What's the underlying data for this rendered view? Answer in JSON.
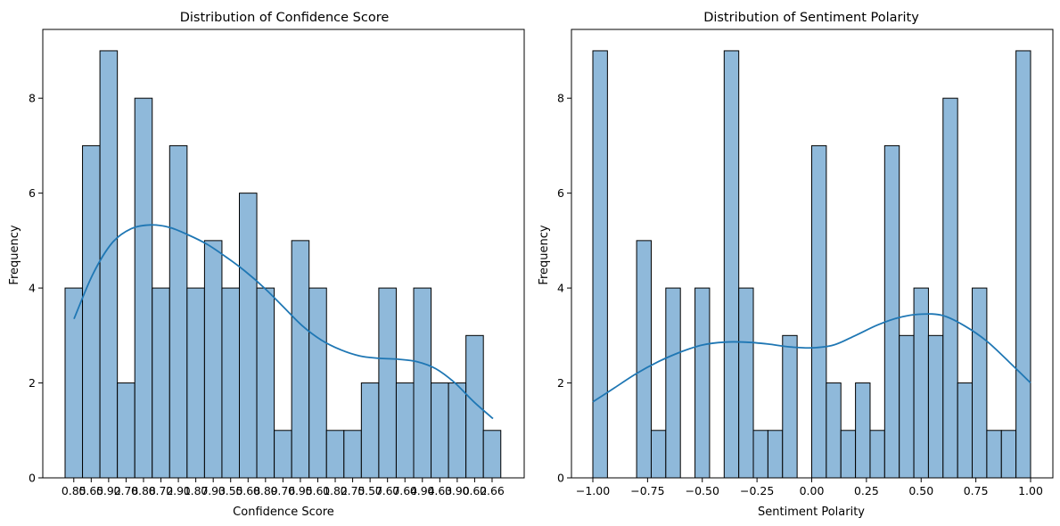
{
  "colors": {
    "bar_fill": "#8fb9da",
    "kde": "#1f77b4"
  },
  "chart_data": [
    {
      "type": "bar",
      "subtype": "histogram-with-kde",
      "title": "Distribution of Confidence Score",
      "xlabel": "Confidence Score",
      "ylabel": "Frequency",
      "ylim": [
        0,
        9.45
      ],
      "yticks": [
        0,
        2,
        4,
        6,
        8
      ],
      "categories": [
        "0.85",
        "0.65",
        "0.92",
        "0.78",
        "0.88",
        "0.72",
        "0.91",
        "0.87",
        "0.93",
        "0.55",
        "0.68",
        "0.89",
        "0.76",
        "0.95",
        "0.61",
        "0.82",
        "0.75",
        "0.57",
        "0.67",
        "0.64",
        "0.94",
        "0.63",
        "0.90",
        "0.62",
        "0.66"
      ],
      "values": [
        4,
        7,
        9,
        2,
        8,
        4,
        7,
        4,
        5,
        4,
        6,
        4,
        1,
        5,
        4,
        1,
        1,
        2,
        4,
        2,
        4,
        2,
        2,
        3,
        1
      ],
      "kde": [
        3.35,
        4.3,
        4.95,
        5.25,
        5.33,
        5.28,
        5.12,
        4.92,
        4.65,
        4.35,
        4.0,
        3.6,
        3.2,
        2.9,
        2.7,
        2.57,
        2.52,
        2.5,
        2.45,
        2.3,
        2.0,
        1.6,
        1.25
      ]
    },
    {
      "type": "bar",
      "subtype": "histogram-with-kde",
      "title": "Distribution of Sentiment Polarity",
      "xlabel": "Sentiment Polarity",
      "ylabel": "Frequency",
      "xlim": [
        -1.0,
        1.0
      ],
      "ylim": [
        0,
        9.45
      ],
      "xticks": [
        "−1.00",
        "−0.75",
        "−0.50",
        "−0.25",
        "0.00",
        "0.25",
        "0.50",
        "0.75",
        "1.00"
      ],
      "yticks": [
        0,
        2,
        4,
        6,
        8
      ],
      "bin_edges": [
        -1.0,
        -0.9333,
        -0.8667,
        -0.8,
        -0.7333,
        -0.6667,
        -0.6,
        -0.5333,
        -0.4667,
        -0.4,
        -0.3333,
        -0.2667,
        -0.2,
        -0.1333,
        -0.0667,
        0.0,
        0.0667,
        0.1333,
        0.2,
        0.2667,
        0.3333,
        0.4,
        0.4667,
        0.5333,
        0.6,
        0.6667,
        0.7333,
        0.8,
        0.8667,
        0.9333,
        1.0
      ],
      "values": [
        9,
        0,
        0,
        5,
        1,
        4,
        0,
        4,
        0,
        9,
        4,
        1,
        1,
        3,
        0,
        7,
        2,
        1,
        2,
        1,
        7,
        3,
        4,
        3,
        8,
        2,
        4,
        1,
        1,
        9
      ],
      "kde_x": [
        -1.0,
        -0.9,
        -0.8,
        -0.7,
        -0.6,
        -0.5,
        -0.4,
        -0.3,
        -0.2,
        -0.1,
        0.0,
        0.1,
        0.2,
        0.3,
        0.4,
        0.5,
        0.6,
        0.7,
        0.8,
        0.9,
        1.0
      ],
      "kde": [
        1.6,
        1.9,
        2.2,
        2.45,
        2.65,
        2.8,
        2.86,
        2.86,
        2.82,
        2.76,
        2.74,
        2.8,
        3.0,
        3.22,
        3.38,
        3.45,
        3.42,
        3.2,
        2.88,
        2.45,
        2.0
      ]
    }
  ]
}
